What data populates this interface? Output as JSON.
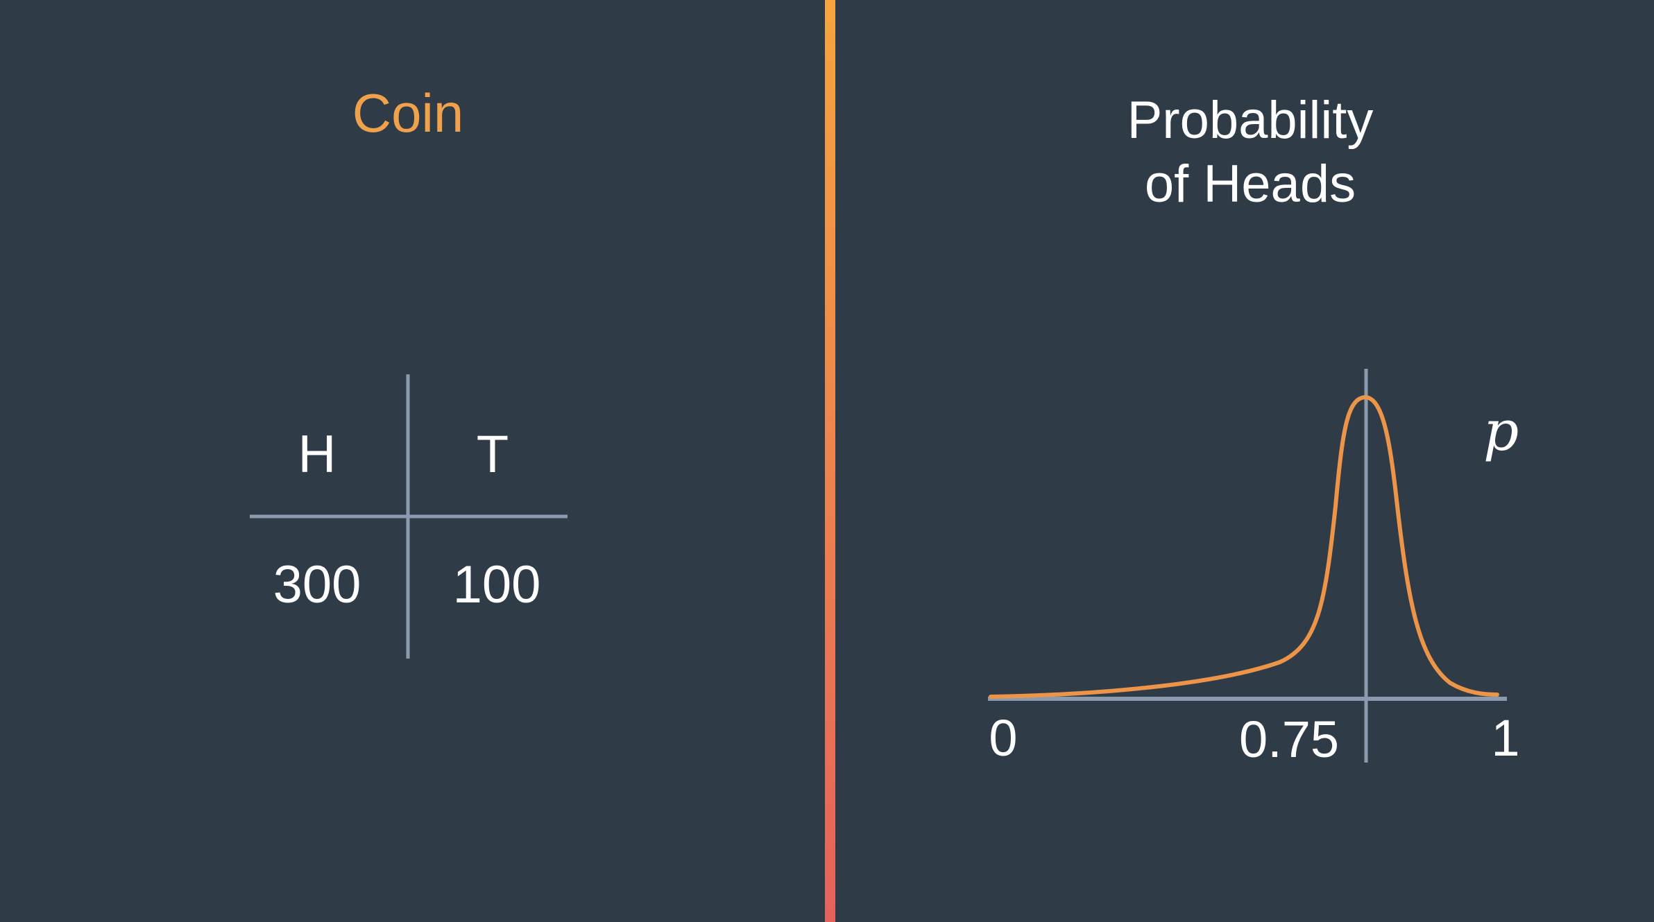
{
  "left": {
    "title": "Coin",
    "title_color": "#f0a14b",
    "table": {
      "headers": [
        "H",
        "T"
      ],
      "values": [
        "300",
        "100"
      ]
    }
  },
  "right": {
    "title_line1": "Probability",
    "title_line2": "of Heads",
    "title_color": "#ffffff",
    "chart": {
      "variable": "p",
      "ticks": [
        "0",
        "0.75",
        "1"
      ]
    }
  },
  "colors": {
    "background": "#303b48",
    "divider_top": "#f5a540",
    "divider_bottom": "#e5625c",
    "axis": "#8a9bb0",
    "curve": "#ec9448"
  }
}
